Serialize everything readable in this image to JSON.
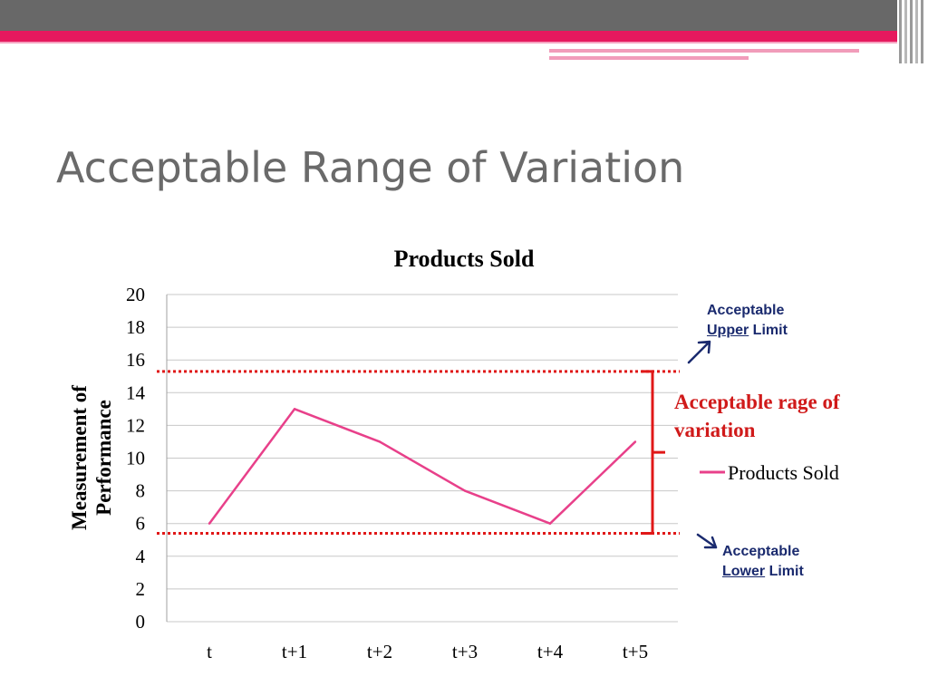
{
  "slide": {
    "title": "Acceptable Range of Variation"
  },
  "annotations": {
    "upper_limit": {
      "line1": "Acceptable",
      "word": "Upper",
      "rest": " Limit",
      "value": 15.3
    },
    "lower_limit": {
      "line1": "Acceptable",
      "word": "Lower",
      "rest": " Limit",
      "value": 5.4
    },
    "range_label": "Acceptable rage of variation"
  },
  "colors": {
    "series": "#e8408a",
    "limit_line": "#e01818",
    "bracket": "#e01818",
    "arrow": "#1a2a6e",
    "gridline": "#c8c8c8"
  },
  "chart_data": {
    "type": "line",
    "title": "Products Sold",
    "categories": [
      "t",
      "t+1",
      "t+2",
      "t+3",
      "t+4",
      "t+5"
    ],
    "series": [
      {
        "name": "Products Sold",
        "values": [
          6,
          13,
          11,
          8,
          6,
          11
        ]
      }
    ],
    "ylabel": "Measurement of Performance",
    "xlabel": "",
    "ylim": [
      0,
      20
    ],
    "yticks": [
      0,
      2,
      4,
      6,
      8,
      10,
      12,
      14,
      16,
      18,
      20
    ],
    "grid": true,
    "legend": "right"
  }
}
